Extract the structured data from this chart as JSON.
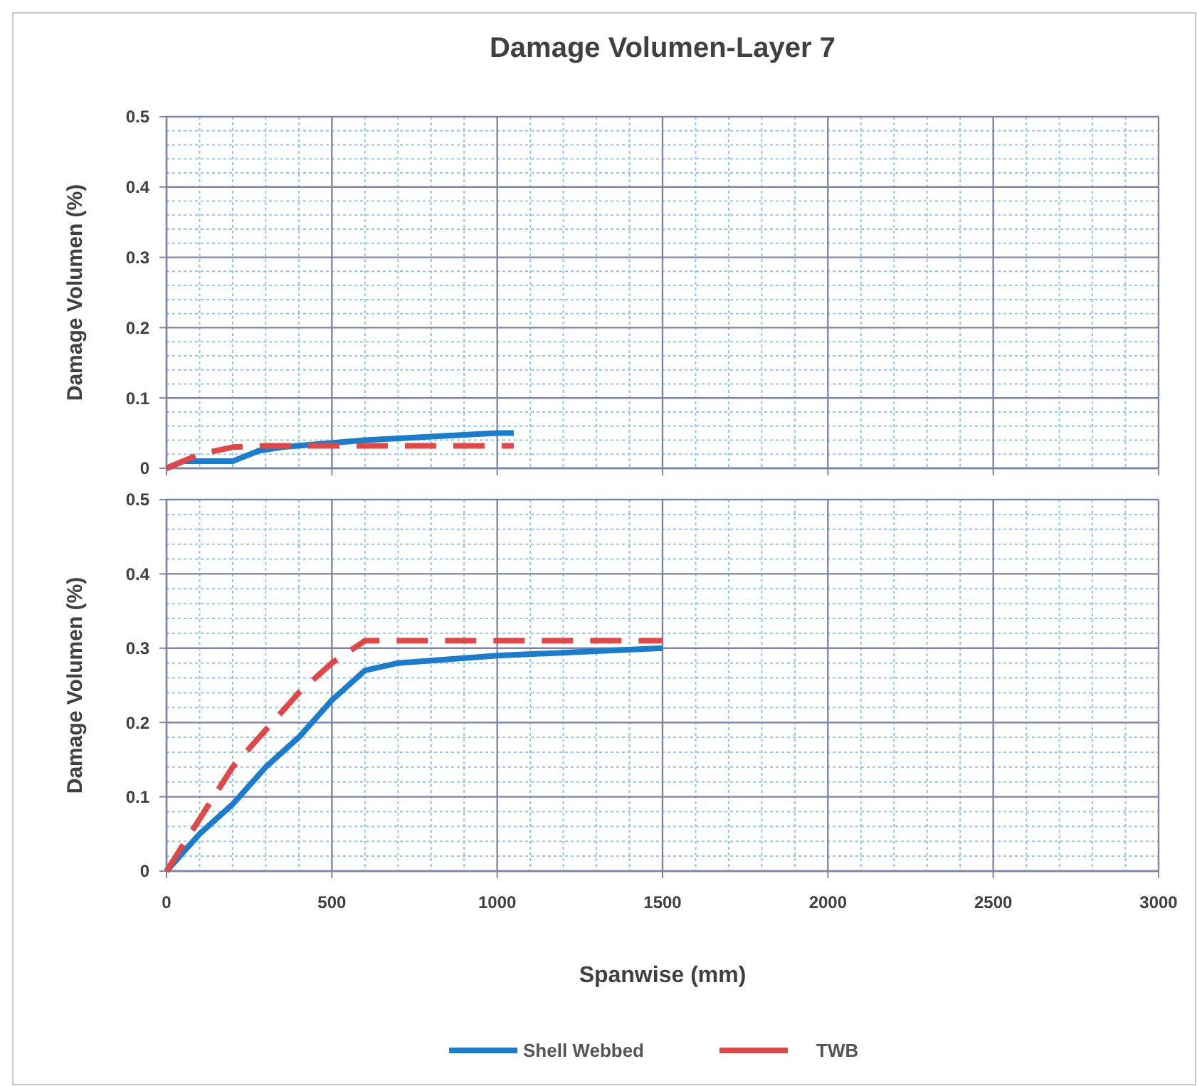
{
  "chart_data": [
    {
      "type": "line",
      "title": "Damage Volumen-Layer 7",
      "ylabel": "Damage Volumen (%)",
      "xlim": [
        0,
        3000
      ],
      "xticks": [
        0,
        {
          "value": 100,
          "label": null
        },
        {
          "value": 200,
          "label": null
        },
        {
          "value": 300,
          "label": null
        },
        {
          "value": 400,
          "label": null
        },
        500,
        {
          "value": 600,
          "label": null
        },
        {
          "value": 700,
          "label": null
        },
        {
          "value": 800,
          "label": null
        },
        {
          "value": 900,
          "label": null
        },
        1000,
        {
          "value": 1100,
          "label": null
        },
        {
          "value": 1200,
          "label": null
        },
        {
          "value": 1300,
          "label": null
        },
        {
          "value": 1400,
          "label": null
        },
        1500,
        {
          "value": 1600,
          "label": null
        },
        {
          "value": 1700,
          "label": null
        },
        {
          "value": 1800,
          "label": null
        },
        {
          "value": 1900,
          "label": null
        },
        2000,
        {
          "value": 2100,
          "label": null
        },
        {
          "value": 2200,
          "label": null
        },
        {
          "value": 2300,
          "label": null
        },
        {
          "value": 2400,
          "label": null
        },
        2500,
        {
          "value": 2600,
          "label": null
        },
        {
          "value": 2700,
          "label": null
        },
        {
          "value": 2800,
          "label": null
        },
        {
          "value": 2900,
          "label": null
        },
        3000
      ],
      "ylim": [
        0,
        0.5
      ],
      "yticks": [
        0,
        {
          "value": 0.02,
          "label": null
        },
        {
          "value": 0.04,
          "label": null
        },
        {
          "value": 0.06,
          "label": null
        },
        {
          "value": 0.08,
          "label": null
        },
        0.1,
        {
          "value": 0.12,
          "label": null
        },
        {
          "value": 0.14,
          "label": null
        },
        {
          "value": 0.16,
          "label": null
        },
        {
          "value": 0.18,
          "label": null
        },
        0.2,
        {
          "value": 0.22,
          "label": null
        },
        {
          "value": 0.24,
          "label": null
        },
        {
          "value": 0.26,
          "label": null
        },
        {
          "value": 0.28,
          "label": null
        },
        0.3,
        {
          "value": 0.32,
          "label": null
        },
        {
          "value": 0.34,
          "label": null
        },
        {
          "value": 0.36,
          "label": null
        },
        {
          "value": 0.38,
          "label": null
        },
        0.4,
        {
          "value": 0.42,
          "label": null
        },
        {
          "value": 0.44,
          "label": null
        },
        {
          "value": 0.46,
          "label": null
        },
        {
          "value": 0.48,
          "label": null
        },
        0.5
      ],
      "grid": true,
      "tick_labels": "y",
      "marker": "none",
      "series": [
        {
          "color": "#1a7ccc",
          "line_style": "solid",
          "x": [
            0,
            50,
            200,
            280,
            350,
            600,
            1000,
            1050
          ],
          "values": [
            0,
            0.01,
            0.01,
            0.025,
            0.03,
            0.04,
            0.05,
            0.05
          ]
        },
        {
          "color": "#e04848",
          "line_style": "dashed",
          "x": [
            0,
            100,
            200,
            300,
            1050
          ],
          "values": [
            0,
            0.02,
            0.03,
            0.032,
            0.032
          ]
        }
      ]
    },
    {
      "type": "line",
      "ylabel": "Damage Volumen (%)",
      "xlabel": "Spanwise (mm)",
      "xlim": [
        0,
        3000
      ],
      "xticks": [
        0,
        {
          "value": 100,
          "label": null
        },
        {
          "value": 200,
          "label": null
        },
        {
          "value": 300,
          "label": null
        },
        {
          "value": 400,
          "label": null
        },
        500,
        {
          "value": 600,
          "label": null
        },
        {
          "value": 700,
          "label": null
        },
        {
          "value": 800,
          "label": null
        },
        {
          "value": 900,
          "label": null
        },
        1000,
        {
          "value": 1100,
          "label": null
        },
        {
          "value": 1200,
          "label": null
        },
        {
          "value": 1300,
          "label": null
        },
        {
          "value": 1400,
          "label": null
        },
        1500,
        {
          "value": 1600,
          "label": null
        },
        {
          "value": 1700,
          "label": null
        },
        {
          "value": 1800,
          "label": null
        },
        {
          "value": 1900,
          "label": null
        },
        2000,
        {
          "value": 2100,
          "label": null
        },
        {
          "value": 2200,
          "label": null
        },
        {
          "value": 2300,
          "label": null
        },
        {
          "value": 2400,
          "label": null
        },
        2500,
        {
          "value": 2600,
          "label": null
        },
        {
          "value": 2700,
          "label": null
        },
        {
          "value": 2800,
          "label": null
        },
        {
          "value": 2900,
          "label": null
        },
        3000
      ],
      "ylim": [
        0,
        0.5
      ],
      "yticks": [
        0,
        {
          "value": 0.02,
          "label": null
        },
        {
          "value": 0.04,
          "label": null
        },
        {
          "value": 0.06,
          "label": null
        },
        {
          "value": 0.08,
          "label": null
        },
        0.1,
        {
          "value": 0.12,
          "label": null
        },
        {
          "value": 0.14,
          "label": null
        },
        {
          "value": 0.16,
          "label": null
        },
        {
          "value": 0.18,
          "label": null
        },
        0.2,
        {
          "value": 0.22,
          "label": null
        },
        {
          "value": 0.24,
          "label": null
        },
        {
          "value": 0.26,
          "label": null
        },
        {
          "value": 0.28,
          "label": null
        },
        0.3,
        {
          "value": 0.32,
          "label": null
        },
        {
          "value": 0.34,
          "label": null
        },
        {
          "value": 0.36,
          "label": null
        },
        {
          "value": 0.38,
          "label": null
        },
        0.4,
        {
          "value": 0.42,
          "label": null
        },
        {
          "value": 0.44,
          "label": null
        },
        {
          "value": 0.46,
          "label": null
        },
        {
          "value": 0.48,
          "label": null
        },
        0.5
      ],
      "grid": true,
      "legend": "bottom",
      "marker": "none",
      "series": [
        {
          "name": "Shell Webbed",
          "color": "#1a7ccc",
          "line_style": "solid",
          "x": [
            0,
            100,
            200,
            300,
            400,
            500,
            600,
            700,
            1000,
            1500
          ],
          "values": [
            0,
            0.05,
            0.09,
            0.14,
            0.18,
            0.23,
            0.27,
            0.28,
            0.29,
            0.3
          ]
        },
        {
          "name": "TWB",
          "color": "#e04848",
          "line_style": "dashed",
          "x": [
            0,
            100,
            200,
            300,
            400,
            500,
            600,
            1500
          ],
          "values": [
            0,
            0.07,
            0.14,
            0.19,
            0.24,
            0.28,
            0.31,
            0.31
          ]
        }
      ]
    }
  ]
}
